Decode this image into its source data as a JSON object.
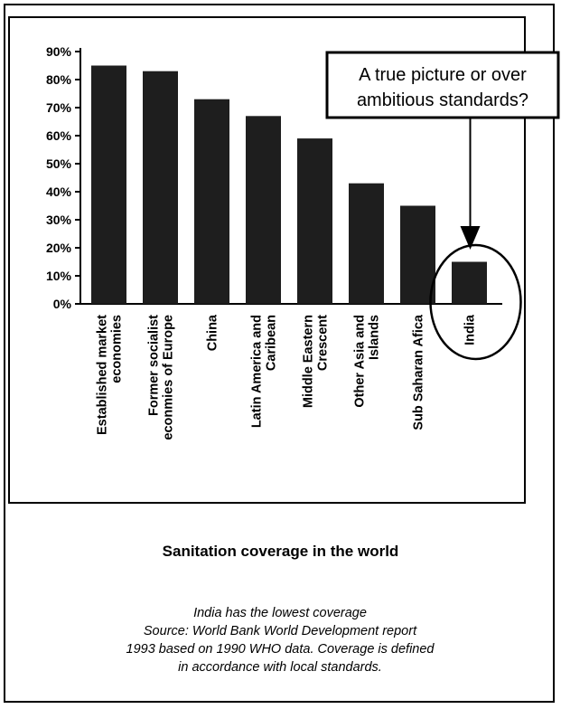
{
  "chart_data": {
    "type": "bar",
    "categories": [
      [
        "Established market",
        "economies"
      ],
      [
        "Former socialist",
        "econmies of Europe"
      ],
      [
        "China"
      ],
      [
        "Latin America and",
        "Caribean"
      ],
      [
        "Middle Eastern",
        "Crescent"
      ],
      [
        "Other Asia and",
        "Islands"
      ],
      [
        "Sub Saharan Afica"
      ],
      [
        "India"
      ]
    ],
    "values": [
      85,
      83,
      73,
      67,
      59,
      43,
      35,
      15
    ],
    "y_ticks": [
      "0%",
      "10%",
      "20%",
      "30%",
      "40%",
      "50%",
      "60%",
      "70%",
      "80%",
      "90%"
    ],
    "ylim": [
      0,
      90
    ],
    "grid": false,
    "bar_color": "#1e1e1e",
    "annotation": [
      "A true picture or over",
      "ambitious standards?"
    ],
    "highlight_category": "India",
    "title": "Sanitation coverage in the world"
  },
  "caption": [
    "India has the lowest coverage",
    "Source: World Bank World Development report",
    "1993 based on 1990 WHO data. Coverage is defined",
    "in accordance with local standards."
  ]
}
